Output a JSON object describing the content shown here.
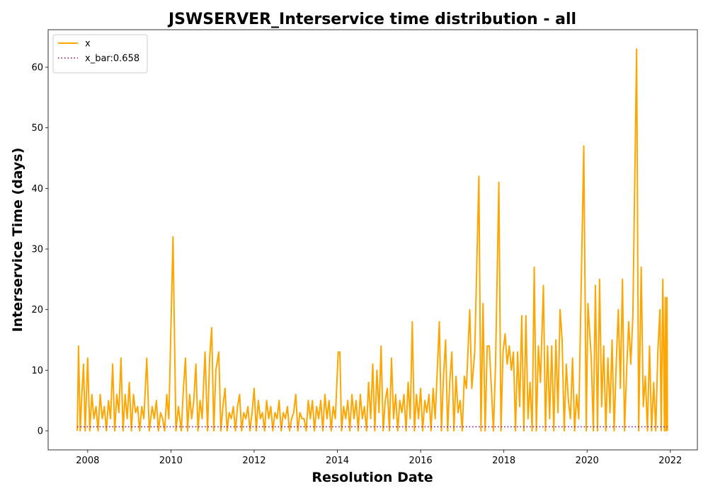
{
  "chart_data": {
    "type": "line",
    "title": "JSWSERVER_Interservice time distribution - all",
    "x_label": "Resolution Date",
    "y_label": "Interservice Time (days)",
    "xlim": [
      2007.05,
      2022.65
    ],
    "ylim": [
      -3.15,
      66.19
    ],
    "xticks": [
      2008,
      2010,
      2012,
      2014,
      2016,
      2018,
      2020,
      2022
    ],
    "yticks": [
      0,
      10,
      20,
      30,
      40,
      50,
      60
    ],
    "grid": false,
    "legend": "upper left",
    "series": [
      {
        "name": "x",
        "color": "#ffa500",
        "style": "solid",
        "x": [
          2007.75,
          2007.78,
          2007.82,
          2007.86,
          2007.9,
          2007.94,
          2008.0,
          2008.05,
          2008.1,
          2008.15,
          2008.2,
          2008.25,
          2008.3,
          2008.35,
          2008.4,
          2008.45,
          2008.5,
          2008.55,
          2008.6,
          2008.65,
          2008.7,
          2008.75,
          2008.8,
          2008.85,
          2008.9,
          2008.95,
          2009.0,
          2009.05,
          2009.1,
          2009.15,
          2009.2,
          2009.25,
          2009.3,
          2009.35,
          2009.42,
          2009.48,
          2009.55,
          2009.6,
          2009.65,
          2009.7,
          2009.75,
          2009.8,
          2009.85,
          2009.9,
          2009.95,
          2010.05,
          2010.12,
          2010.18,
          2010.25,
          2010.3,
          2010.35,
          2010.4,
          2010.45,
          2010.5,
          2010.55,
          2010.6,
          2010.65,
          2010.7,
          2010.75,
          2010.82,
          2010.88,
          2010.93,
          2010.98,
          2011.03,
          2011.08,
          2011.15,
          2011.2,
          2011.25,
          2011.3,
          2011.35,
          2011.4,
          2011.45,
          2011.5,
          2011.55,
          2011.6,
          2011.65,
          2011.7,
          2011.75,
          2011.8,
          2011.85,
          2011.9,
          2011.95,
          2012.0,
          2012.05,
          2012.1,
          2012.15,
          2012.2,
          2012.25,
          2012.3,
          2012.35,
          2012.4,
          2012.45,
          2012.5,
          2012.55,
          2012.6,
          2012.65,
          2012.7,
          2012.75,
          2012.8,
          2012.85,
          2012.9,
          2012.95,
          2013.0,
          2013.05,
          2013.1,
          2013.15,
          2013.2,
          2013.25,
          2013.3,
          2013.35,
          2013.4,
          2013.45,
          2013.5,
          2013.55,
          2013.6,
          2013.65,
          2013.7,
          2013.75,
          2013.8,
          2013.85,
          2013.9,
          2013.95,
          2014.02,
          2014.06,
          2014.1,
          2014.15,
          2014.2,
          2014.25,
          2014.3,
          2014.35,
          2014.4,
          2014.45,
          2014.5,
          2014.55,
          2014.6,
          2014.65,
          2014.7,
          2014.75,
          2014.8,
          2014.85,
          2014.9,
          2014.95,
          2015.0,
          2015.05,
          2015.1,
          2015.15,
          2015.2,
          2015.25,
          2015.3,
          2015.35,
          2015.4,
          2015.45,
          2015.5,
          2015.55,
          2015.6,
          2015.65,
          2015.7,
          2015.75,
          2015.8,
          2015.85,
          2015.9,
          2015.95,
          2016.0,
          2016.05,
          2016.1,
          2016.15,
          2016.2,
          2016.25,
          2016.3,
          2016.35,
          2016.45,
          2016.5,
          2016.55,
          2016.6,
          2016.65,
          2016.7,
          2016.75,
          2016.8,
          2016.85,
          2016.9,
          2016.95,
          2017.0,
          2017.05,
          2017.1,
          2017.18,
          2017.23,
          2017.3,
          2017.4,
          2017.45,
          2017.5,
          2017.55,
          2017.6,
          2017.65,
          2017.7,
          2017.75,
          2017.8,
          2017.88,
          2017.93,
          2017.98,
          2018.03,
          2018.08,
          2018.13,
          2018.18,
          2018.23,
          2018.28,
          2018.33,
          2018.38,
          2018.43,
          2018.48,
          2018.53,
          2018.58,
          2018.63,
          2018.68,
          2018.73,
          2018.78,
          2018.83,
          2018.88,
          2018.95,
          2019.0,
          2019.05,
          2019.1,
          2019.15,
          2019.2,
          2019.25,
          2019.3,
          2019.35,
          2019.4,
          2019.45,
          2019.5,
          2019.55,
          2019.6,
          2019.65,
          2019.7,
          2019.75,
          2019.8,
          2019.92,
          2019.98,
          2020.02,
          2020.1,
          2020.15,
          2020.2,
          2020.25,
          2020.3,
          2020.35,
          2020.4,
          2020.45,
          2020.5,
          2020.55,
          2020.6,
          2020.65,
          2020.7,
          2020.75,
          2020.8,
          2020.85,
          2020.9,
          2020.95,
          2021.0,
          2021.05,
          2021.1,
          2021.19,
          2021.24,
          2021.3,
          2021.35,
          2021.4,
          2021.45,
          2021.5,
          2021.55,
          2021.6,
          2021.65,
          2021.7,
          2021.75,
          2021.78,
          2021.82,
          2021.86,
          2021.88,
          2021.9,
          2021.92,
          2021.93
        ],
        "values": [
          0,
          14,
          0,
          6,
          11,
          0,
          12,
          0,
          6,
          2,
          4,
          0,
          6,
          2,
          4,
          0,
          5,
          2,
          11,
          0,
          6,
          3,
          12,
          0,
          6,
          2,
          8,
          0,
          6,
          3,
          4,
          0,
          4,
          2,
          12,
          0,
          4,
          2,
          5,
          0,
          3,
          2,
          0,
          6,
          2,
          32,
          0,
          4,
          0,
          7,
          12,
          0,
          6,
          2,
          5,
          11,
          0,
          5,
          2,
          13,
          0,
          12,
          17,
          0,
          10,
          13,
          0,
          4,
          7,
          0,
          3,
          2,
          4,
          0,
          4,
          6,
          0,
          3,
          2,
          4,
          0,
          3,
          7,
          0,
          5,
          2,
          3,
          0,
          5,
          2,
          4,
          0,
          3,
          2,
          5,
          0,
          3,
          2,
          4,
          0,
          2,
          3,
          6,
          0,
          3,
          2,
          2,
          0,
          5,
          2,
          5,
          0,
          4,
          2,
          5,
          0,
          6,
          2,
          5,
          0,
          4,
          2,
          13,
          13,
          0,
          4,
          2,
          5,
          0,
          6,
          2,
          5,
          0,
          6,
          2,
          4,
          0,
          8,
          2,
          11,
          0,
          10,
          3,
          14,
          0,
          5,
          7,
          0,
          12,
          2,
          6,
          0,
          5,
          3,
          6,
          0,
          8,
          2,
          18,
          0,
          6,
          2,
          7,
          0,
          5,
          3,
          6,
          0,
          7,
          2,
          18,
          0,
          9,
          15,
          0,
          8,
          13,
          0,
          9,
          3,
          5,
          0,
          9,
          7,
          20,
          7,
          13,
          42,
          0,
          21,
          0,
          14,
          14,
          7,
          0,
          11,
          41,
          0,
          13,
          16,
          11,
          14,
          10,
          13,
          0,
          13,
          4,
          19,
          0,
          19,
          2,
          8,
          0,
          27,
          0,
          14,
          8,
          24,
          0,
          14,
          2,
          14,
          0,
          15,
          3,
          20,
          15,
          0,
          11,
          5,
          2,
          12,
          0,
          6,
          2,
          47,
          0,
          21,
          12,
          0,
          24,
          0,
          25,
          4,
          14,
          0,
          12,
          3,
          15,
          0,
          11,
          20,
          7,
          25,
          0,
          10,
          18,
          11,
          19,
          63,
          0,
          27,
          4,
          9,
          0,
          14,
          0,
          8,
          0,
          13,
          20,
          0,
          25,
          0,
          22,
          0,
          22,
          0
        ]
      },
      {
        "name": "x_bar:0.658",
        "color": "#800080",
        "style": "dotted",
        "x": [
          2007.75,
          2021.93
        ],
        "values": [
          0.658,
          0.658
        ]
      }
    ]
  }
}
